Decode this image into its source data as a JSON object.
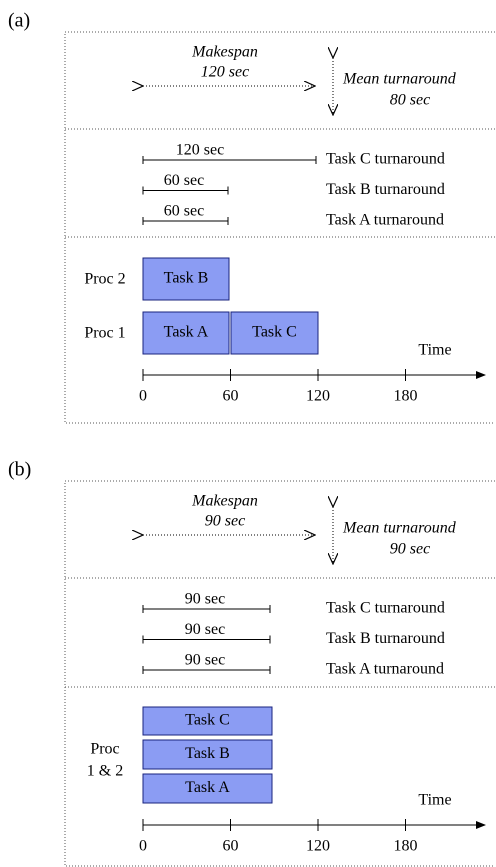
{
  "panels": [
    {
      "label": "(a)",
      "makespan": {
        "title": "Makespan",
        "value": "120 sec"
      },
      "mean_turnaround": {
        "title": "Mean turnaround",
        "value": "80 sec"
      },
      "turnarounds": [
        {
          "duration": "120 sec",
          "label": "Task C turnaround"
        },
        {
          "duration": "60 sec",
          "label": "Task B turnaround"
        },
        {
          "duration": "60 sec",
          "label": "Task A turnaround"
        }
      ],
      "processors": [
        {
          "label": [
            "Proc 2"
          ],
          "tasks": [
            "Task B"
          ]
        },
        {
          "label": [
            "Proc 1"
          ],
          "tasks": [
            "Task A",
            "Task C"
          ]
        }
      ],
      "axis": {
        "label": "Time",
        "ticks": [
          "0",
          "60",
          "120",
          "180"
        ]
      }
    },
    {
      "label": "(b)",
      "makespan": {
        "title": "Makespan",
        "value": "90 sec"
      },
      "mean_turnaround": {
        "title": "Mean turnaround",
        "value": "90 sec"
      },
      "turnarounds": [
        {
          "duration": "90 sec",
          "label": "Task C turnaround"
        },
        {
          "duration": "90 sec",
          "label": "Task B turnaround"
        },
        {
          "duration": "90 sec",
          "label": "Task A turnaround"
        }
      ],
      "processors": [
        {
          "label": [
            "Proc",
            "1 & 2"
          ],
          "tasks": [
            "Task C",
            "Task B",
            "Task A"
          ]
        }
      ],
      "axis": {
        "label": "Time",
        "ticks": [
          "0",
          "60",
          "120",
          "180"
        ]
      }
    }
  ]
}
